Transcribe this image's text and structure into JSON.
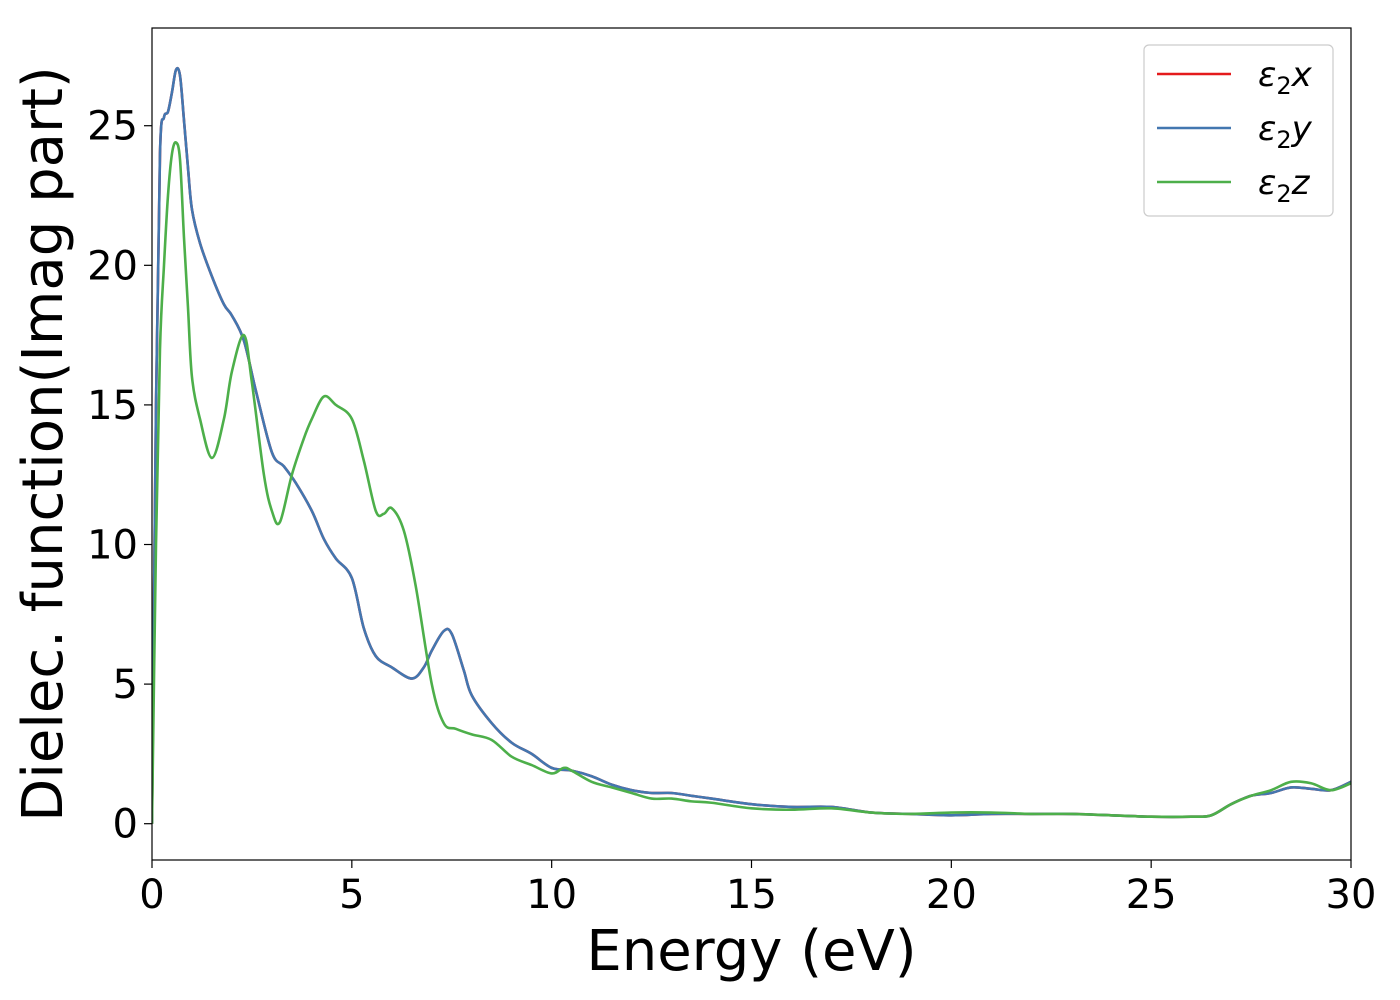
{
  "chart_data": {
    "type": "line",
    "xlabel": "Energy (eV)",
    "ylabel": "Dielec. function(Imag part)",
    "xlim": [
      0,
      30
    ],
    "ylim": [
      -1.3,
      28.5
    ],
    "xticks": [
      0,
      5,
      10,
      15,
      20,
      25,
      30
    ],
    "yticks": [
      0,
      5,
      10,
      15,
      20,
      25
    ],
    "grid": false,
    "legend_position": "top-right",
    "series": [
      {
        "name": "ε2x",
        "legend_base": "ε",
        "legend_sub": "2",
        "legend_suffix": "x",
        "color": "#e41a1c",
        "x": [
          0,
          0.1,
          0.2,
          0.3,
          0.4,
          0.5,
          0.6,
          0.7,
          0.8,
          0.9,
          1.0,
          1.2,
          1.5,
          1.8,
          2.0,
          2.3,
          2.6,
          3.0,
          3.3,
          3.6,
          4.0,
          4.3,
          4.6,
          5.0,
          5.3,
          5.6,
          6.0,
          6.5,
          6.8,
          7.0,
          7.3,
          7.5,
          7.8,
          8.0,
          8.5,
          9.0,
          9.5,
          10.0,
          10.5,
          11.0,
          11.5,
          12.0,
          12.5,
          13.0,
          13.5,
          14.0,
          15.0,
          16.0,
          17.0,
          18.0,
          19.0,
          20.0,
          21.0,
          22.0,
          23.0,
          24.0,
          25.0,
          26.0,
          26.5,
          27.0,
          27.5,
          28.0,
          28.5,
          29.0,
          29.5,
          30.0
        ],
        "y": [
          0,
          15,
          24,
          25.3,
          25.5,
          26.2,
          27.0,
          26.8,
          25.2,
          23.5,
          22.0,
          20.8,
          19.6,
          18.6,
          18.2,
          17.3,
          15.5,
          13.3,
          12.8,
          12.2,
          11.2,
          10.2,
          9.5,
          8.8,
          7.0,
          6.0,
          5.6,
          5.2,
          5.6,
          6.2,
          6.9,
          6.8,
          5.5,
          4.6,
          3.6,
          2.9,
          2.5,
          2.0,
          1.9,
          1.7,
          1.4,
          1.2,
          1.1,
          1.1,
          1.0,
          0.9,
          0.7,
          0.6,
          0.6,
          0.4,
          0.35,
          0.3,
          0.35,
          0.35,
          0.35,
          0.3,
          0.25,
          0.25,
          0.3,
          0.7,
          1.0,
          1.1,
          1.3,
          1.25,
          1.2,
          1.5
        ]
      },
      {
        "name": "ε2y",
        "legend_base": "ε",
        "legend_sub": "2",
        "legend_suffix": "y",
        "color": "#4377b0",
        "x": [
          0,
          0.1,
          0.2,
          0.3,
          0.4,
          0.5,
          0.6,
          0.7,
          0.8,
          0.9,
          1.0,
          1.2,
          1.5,
          1.8,
          2.0,
          2.3,
          2.6,
          3.0,
          3.3,
          3.6,
          4.0,
          4.3,
          4.6,
          5.0,
          5.3,
          5.6,
          6.0,
          6.5,
          6.8,
          7.0,
          7.3,
          7.5,
          7.8,
          8.0,
          8.5,
          9.0,
          9.5,
          10.0,
          10.5,
          11.0,
          11.5,
          12.0,
          12.5,
          13.0,
          13.5,
          14.0,
          15.0,
          16.0,
          17.0,
          18.0,
          19.0,
          20.0,
          21.0,
          22.0,
          23.0,
          24.0,
          25.0,
          26.0,
          26.5,
          27.0,
          27.5,
          28.0,
          28.5,
          29.0,
          29.5,
          30.0
        ],
        "y": [
          0,
          15,
          24,
          25.3,
          25.5,
          26.2,
          27.0,
          26.8,
          25.2,
          23.5,
          22.0,
          20.8,
          19.6,
          18.6,
          18.2,
          17.3,
          15.5,
          13.3,
          12.8,
          12.2,
          11.2,
          10.2,
          9.5,
          8.8,
          7.0,
          6.0,
          5.6,
          5.2,
          5.6,
          6.2,
          6.9,
          6.8,
          5.5,
          4.6,
          3.6,
          2.9,
          2.5,
          2.0,
          1.9,
          1.7,
          1.4,
          1.2,
          1.1,
          1.1,
          1.0,
          0.9,
          0.7,
          0.6,
          0.6,
          0.4,
          0.35,
          0.3,
          0.35,
          0.35,
          0.35,
          0.3,
          0.25,
          0.25,
          0.3,
          0.7,
          1.0,
          1.1,
          1.3,
          1.25,
          1.2,
          1.5
        ]
      },
      {
        "name": "ε2z",
        "legend_base": "ε",
        "legend_sub": "2",
        "legend_suffix": "z",
        "color": "#4daf4a",
        "x": [
          0,
          0.1,
          0.2,
          0.3,
          0.4,
          0.5,
          0.6,
          0.7,
          0.8,
          0.9,
          1.0,
          1.2,
          1.5,
          1.8,
          2.0,
          2.3,
          2.5,
          2.8,
          3.0,
          3.2,
          3.5,
          3.8,
          4.0,
          4.3,
          4.6,
          5.0,
          5.3,
          5.6,
          5.8,
          6.0,
          6.3,
          6.6,
          7.0,
          7.3,
          7.6,
          8.0,
          8.5,
          9.0,
          9.5,
          10.0,
          10.3,
          10.5,
          11.0,
          11.5,
          12.0,
          12.5,
          13.0,
          13.5,
          14.0,
          15.0,
          16.0,
          17.0,
          18.0,
          19.0,
          20.0,
          21.0,
          22.0,
          23.0,
          24.0,
          25.0,
          26.0,
          26.5,
          27.0,
          27.5,
          28.0,
          28.5,
          29.0,
          29.5,
          30.0
        ],
        "y": [
          0,
          10,
          17,
          20,
          22.5,
          24.0,
          24.4,
          23.8,
          21.0,
          18.5,
          16.0,
          14.5,
          13.1,
          14.5,
          16.2,
          17.5,
          15.8,
          12.5,
          11.2,
          10.8,
          12.5,
          13.8,
          14.5,
          15.3,
          15.0,
          14.5,
          13.0,
          11.2,
          11.1,
          11.3,
          10.5,
          8.5,
          5.0,
          3.6,
          3.4,
          3.2,
          3.0,
          2.4,
          2.1,
          1.8,
          2.0,
          1.9,
          1.5,
          1.3,
          1.1,
          0.9,
          0.9,
          0.8,
          0.75,
          0.55,
          0.5,
          0.55,
          0.4,
          0.35,
          0.4,
          0.4,
          0.35,
          0.35,
          0.3,
          0.25,
          0.25,
          0.3,
          0.7,
          1.0,
          1.2,
          1.5,
          1.45,
          1.2,
          1.45
        ]
      }
    ]
  }
}
